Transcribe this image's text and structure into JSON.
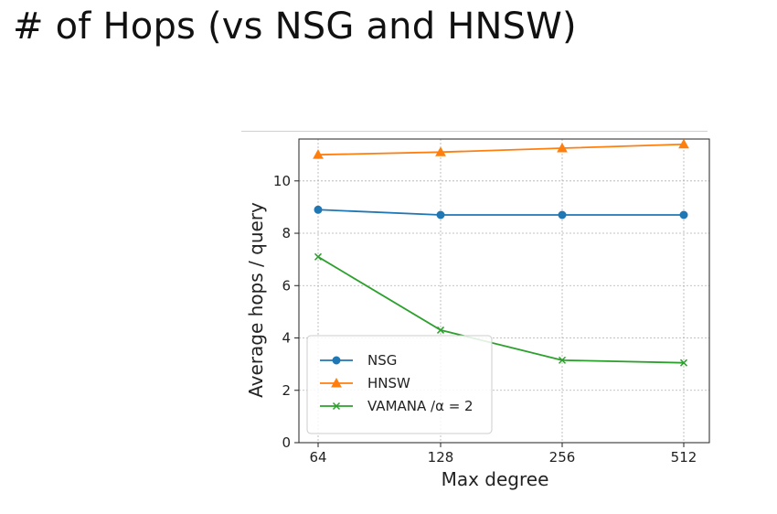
{
  "slide": {
    "title": "# of Hops (vs NSG and HNSW)"
  },
  "chart_data": {
    "type": "line",
    "categories": [
      "64",
      "128",
      "256",
      "512"
    ],
    "xlabel": "Max degree",
    "ylabel": "Average hops / query",
    "ylim": [
      0,
      11.6
    ],
    "yticks": [
      0,
      2,
      4,
      6,
      8,
      10
    ],
    "grid": true,
    "legend_position": "lower-left",
    "series": [
      {
        "name": "NSG",
        "values": [
          8.9,
          8.7,
          8.7,
          8.7
        ],
        "color": "#1f77b4",
        "marker": "circle"
      },
      {
        "name": "HNSW",
        "values": [
          11.0,
          11.1,
          11.25,
          11.4
        ],
        "color": "#ff7f0e",
        "marker": "triangle"
      },
      {
        "name": "VAMANA /α = 2",
        "values": [
          7.1,
          4.3,
          3.15,
          3.05
        ],
        "color": "#2ca02c",
        "marker": "x"
      }
    ]
  }
}
